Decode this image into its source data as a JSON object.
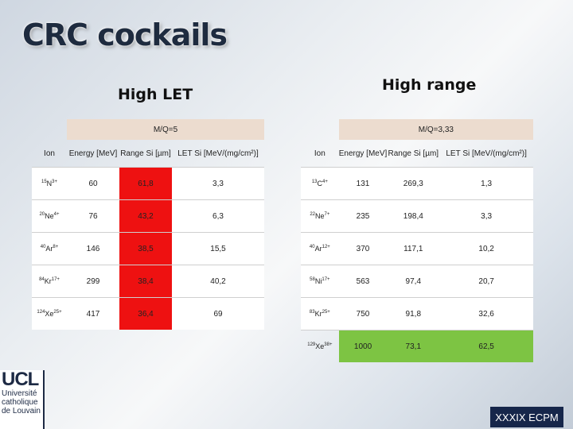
{
  "slide": {
    "title": "CRC cockails",
    "footer": "XXXIX ECPM",
    "logo": {
      "ucl": "UCL",
      "line1": "Université",
      "line2": "catholique",
      "line3": "de Louvain"
    }
  },
  "colors": {
    "red_cell": "#ee1111",
    "green_cell": "#7dc443",
    "mq_header": "#ecdccf"
  },
  "left": {
    "section_title": "High LET",
    "mq": "M/Q=5",
    "headers": [
      "Ion",
      "Energy [MeV]",
      "Range Si [µm]",
      "LET Si [MeV/(mg/cm²)]"
    ],
    "rows": [
      {
        "ion_mass": "15",
        "ion_el": "N",
        "ion_q": "3+",
        "energy": "60",
        "range": "61,8",
        "let": "3,3"
      },
      {
        "ion_mass": "20",
        "ion_el": "Ne",
        "ion_q": "4+",
        "energy": "76",
        "range": "43,2",
        "let": "6,3"
      },
      {
        "ion_mass": "40",
        "ion_el": "Ar",
        "ion_q": "8+",
        "energy": "146",
        "range": "38,5",
        "let": "15,5"
      },
      {
        "ion_mass": "84",
        "ion_el": "Kr",
        "ion_q": "17+",
        "energy": "299",
        "range": "38,4",
        "let": "40,2"
      },
      {
        "ion_mass": "124",
        "ion_el": "Xe",
        "ion_q": "25+",
        "energy": "417",
        "range": "36,4",
        "let": "69"
      }
    ]
  },
  "right": {
    "section_title": "High range",
    "mq": "M/Q=3,33",
    "headers": [
      "Ion",
      "Energy [MeV]",
      "Range Si [µm]",
      "LET Si [MeV/(mg/cm²)]"
    ],
    "rows": [
      {
        "ion_mass": "13",
        "ion_el": "C",
        "ion_q": "4+",
        "energy": "131",
        "range": "269,3",
        "let": "1,3"
      },
      {
        "ion_mass": "22",
        "ion_el": "Ne",
        "ion_q": "7+",
        "energy": "235",
        "range": "198,4",
        "let": "3,3"
      },
      {
        "ion_mass": "40",
        "ion_el": "Ar",
        "ion_q": "12+",
        "energy": "370",
        "range": "117,1",
        "let": "10,2"
      },
      {
        "ion_mass": "58",
        "ion_el": "Ni",
        "ion_q": "17+",
        "energy": "563",
        "range": "97,4",
        "let": "20,7"
      },
      {
        "ion_mass": "83",
        "ion_el": "Kr",
        "ion_q": "25+",
        "energy": "750",
        "range": "91,8",
        "let": "32,6"
      },
      {
        "ion_mass": "129",
        "ion_el": "Xe",
        "ion_q": "38+",
        "energy": "1000",
        "range": "73,1",
        "let": "62,5"
      }
    ]
  }
}
